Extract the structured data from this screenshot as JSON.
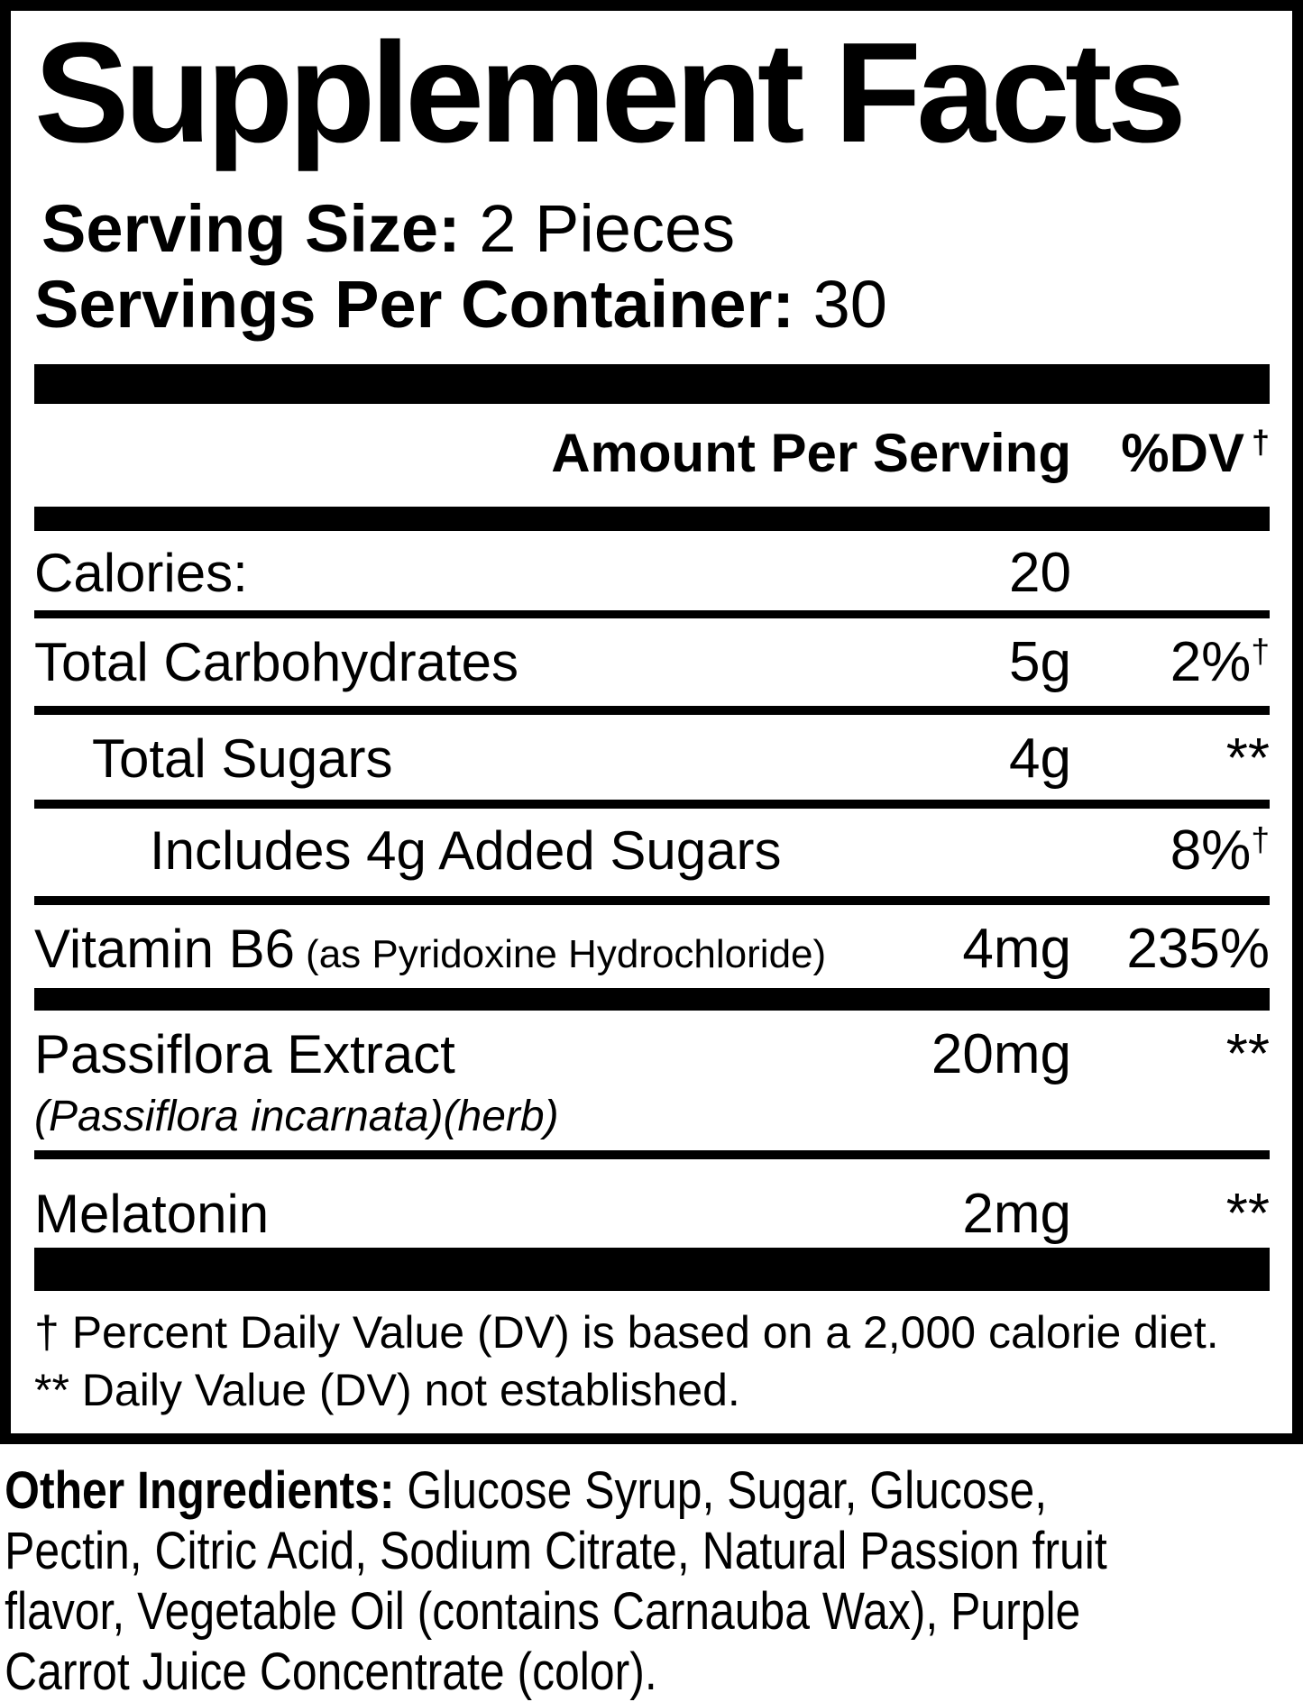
{
  "panel": {
    "title": "Supplement Facts",
    "serving_size": {
      "label": "Serving Size:",
      "value": " 2 Pieces"
    },
    "servings_per_container": {
      "label": "Servings Per Container:",
      "value": " 30"
    },
    "columns": {
      "amount_header": "Amount Per Serving",
      "dv_header": "%DV",
      "dv_header_mark": "†"
    },
    "rows": [
      {
        "name": "Calories:",
        "amount": "20",
        "dv": ""
      },
      {
        "name": "Total Carbohydrates",
        "amount": "5g",
        "dv": "2%",
        "dv_mark": "†"
      },
      {
        "name": "Total Sugars",
        "amount": "4g",
        "dv": "**"
      },
      {
        "name": "Includes 4g Added Sugars",
        "amount": "",
        "dv": "8%",
        "dv_mark": "†"
      },
      {
        "name": "Vitamin B6",
        "name_note": "(as Pyridoxine Hydrochloride)",
        "amount": "4mg",
        "dv": "235%"
      },
      {
        "name": "Passiflora Extract",
        "name_sub": "(Passiflora incarnata)(herb)",
        "amount": "20mg",
        "dv": "**"
      },
      {
        "name": "Melatonin",
        "amount": "2mg",
        "dv": "**"
      }
    ],
    "footnotes": [
      "† Percent Daily Value (DV) is based on a 2,000 calorie diet.",
      "** Daily Value (DV) not established."
    ]
  },
  "other_ingredients": {
    "label": "Other Ingredients:",
    "lines": [
      " Glucose Syrup, Sugar, Glucose,",
      "Pectin, Citric Acid, Sodium Citrate, Natural Passion fruit",
      "flavor, Vegetable Oil (contains Carnauba Wax), Purple",
      "Carrot Juice Concentrate (color)."
    ]
  },
  "colors": {
    "text": "#000000",
    "background": "#ffffff"
  }
}
